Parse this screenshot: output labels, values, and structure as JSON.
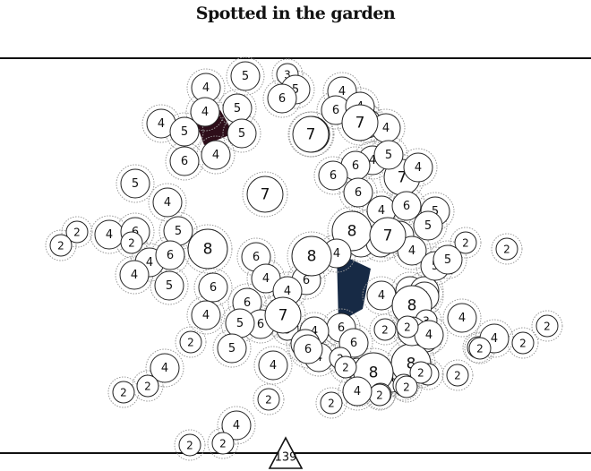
{
  "title": "Spotted in the garden",
  "count_label": "139",
  "colors": {
    "background": "#ffffff",
    "node_fill": "#ffffff",
    "node_stroke": "#222222",
    "halo_stroke": "#9a9a9a",
    "polygon_dark_red": "#2e0e1a",
    "polygon_dark_navy": "#172a45",
    "frame": "#111111"
  },
  "chart_data": {
    "type": "network",
    "title": "Spotted in the garden",
    "total_count": 139,
    "grid": false,
    "legend": "none",
    "node_values": [
      4,
      5,
      3,
      5,
      6,
      4,
      5,
      4,
      4,
      5,
      5,
      6,
      4,
      7,
      6,
      4,
      7,
      4,
      7,
      6,
      4,
      5,
      4,
      5,
      6,
      6,
      6,
      7,
      7,
      4,
      4,
      6,
      5,
      4,
      6,
      5,
      2,
      2,
      4,
      5,
      2,
      4,
      8,
      6,
      4,
      6,
      8,
      5,
      4,
      4,
      2,
      2,
      6,
      4,
      6,
      8,
      4,
      6,
      6,
      6,
      6,
      5,
      6,
      5,
      5,
      4,
      7,
      6,
      5,
      4,
      6,
      3,
      4,
      6,
      6,
      8,
      4,
      4,
      7,
      5,
      3,
      2,
      2,
      4,
      4,
      2,
      2,
      4,
      4,
      6,
      2,
      8,
      4,
      2,
      2,
      2,
      2,
      2,
      8,
      2,
      4,
      2,
      2,
      2,
      2,
      2,
      4,
      2,
      2,
      2,
      2,
      2,
      2,
      2,
      4,
      4,
      2,
      2
    ],
    "highlight_groups": [
      {
        "color": "dark red",
        "vertex_count": 4
      },
      {
        "color": "dark navy",
        "vertex_count": 4
      }
    ]
  }
}
